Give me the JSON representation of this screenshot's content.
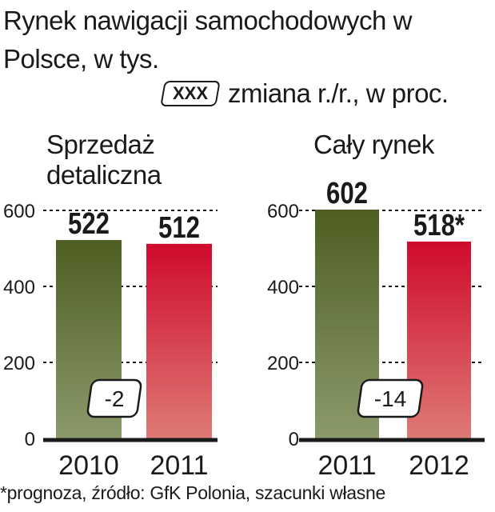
{
  "title": "Rynek nawigacji samochodowych w Polsce, w tys.",
  "legend": {
    "box_label": "XXX",
    "text": "zmiana r./r., w proc."
  },
  "footnote": "*prognoza, źródło: GfK Polonia, szacunki własne",
  "colors": {
    "dark_top": "#4e5e22",
    "dark_bottom": "#8c9a6c",
    "red_top": "#cf0a2c",
    "red_bottom": "#de7a76",
    "axis": "#1a1a1a"
  },
  "chart_data": [
    {
      "type": "bar",
      "subtitle": "Sprzedaż detaliczna",
      "categories": [
        "2010",
        "2011"
      ],
      "values": [
        522,
        512
      ],
      "value_labels": [
        "522",
        "512"
      ],
      "change_label": "-2",
      "yticks": [
        "0",
        "200",
        "400",
        "600"
      ],
      "ylim": [
        0,
        620
      ],
      "grid": true
    },
    {
      "type": "bar",
      "subtitle": "Cały rynek",
      "categories": [
        "2011",
        "2012"
      ],
      "values": [
        602,
        518
      ],
      "value_labels": [
        "602",
        "518*"
      ],
      "change_label": "-14",
      "yticks": [
        "0",
        "200",
        "400",
        "600"
      ],
      "ylim": [
        0,
        620
      ],
      "grid": true
    }
  ]
}
